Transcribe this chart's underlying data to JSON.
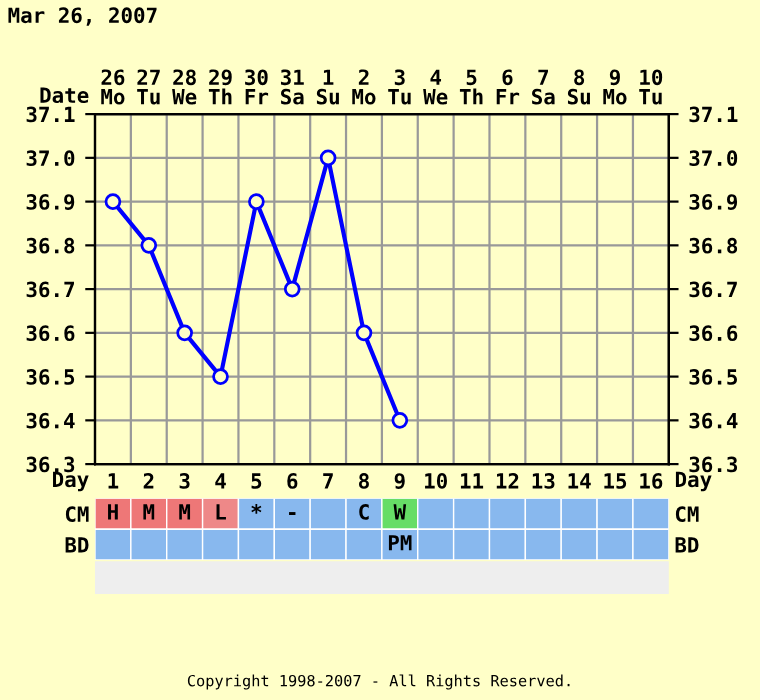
{
  "chart_data": [
    {
      "type": "line",
      "title": "Mar 26, 2007",
      "xlabel": "Date",
      "categories": [
        "26\nMo",
        "27\nTu",
        "28\nWe",
        "29\nTh",
        "30\nFr",
        "31\nSa",
        "1\nSu",
        "2\nMo",
        "3\nTu",
        "4\nWe",
        "5\nTh",
        "6\nFr",
        "7\nSa",
        "8\nSu",
        "9\nMo",
        "10\nTu"
      ],
      "series": [
        {
          "color": "#0000ff",
          "values": [
            36.9,
            36.8,
            36.6,
            36.5,
            36.9,
            36.7,
            37.0,
            36.6,
            36.4,
            null,
            null,
            null,
            null,
            null,
            null,
            null
          ]
        }
      ],
      "ylim": [
        36.3,
        37.1
      ],
      "yticks": [
        36.3,
        36.4,
        36.5,
        36.6,
        36.7,
        36.8,
        36.9,
        {
          "value": 37.0,
          "label": "37.0"
        },
        37.1
      ],
      "y2lim": [
        36.3,
        37.1
      ],
      "y2ticks": [
        36.3,
        36.4,
        36.5,
        36.6,
        36.7,
        36.8,
        36.9,
        {
          "value": 37.0,
          "label": "37.0"
        },
        37.1
      ],
      "marker": "circle",
      "grid": true,
      "legend": false
    },
    {
      "type": "heatmap",
      "xlabel": "Day",
      "categories": [
        "1",
        "2",
        "3",
        "4",
        "5",
        "6",
        "7",
        "8",
        "9",
        "10",
        "11",
        "12",
        "13",
        "14",
        "15",
        "16"
      ],
      "y_categories": [
        "CM",
        "BD"
      ],
      "y2_categories": [
        "CM",
        "BD"
      ],
      "cells": [
        [
          null,
          null,
          null,
          null,
          null,
          null,
          null,
          null,
          null,
          null,
          null,
          null,
          null,
          null,
          null,
          null
        ],
        [
          null,
          null,
          null,
          null,
          null,
          null,
          null,
          null,
          null,
          null,
          null,
          null,
          null,
          null,
          null,
          null
        ]
      ],
      "cell_labels": [
        [
          "H",
          "M",
          "M",
          "L",
          "*",
          "-",
          null,
          "C",
          "W",
          null,
          null,
          null,
          null,
          null,
          null,
          null
        ],
        [
          null,
          null,
          null,
          null,
          null,
          null,
          null,
          null,
          "PM",
          null,
          null,
          null,
          null,
          null,
          null,
          null
        ]
      ],
      "colors": [
        [
          "#ee7777",
          "#ee7777",
          "#ee7777",
          "#ee8888",
          "#88b8ee",
          "#88b8ee",
          "#88b8ee",
          "#88b8ee",
          "#66dd66",
          "#88b8ee",
          "#88b8ee",
          "#88b8ee",
          "#88b8ee",
          "#88b8ee",
          "#88b8ee",
          "#88b8ee"
        ],
        [
          "#88b8ee",
          "#88b8ee",
          "#88b8ee",
          "#88b8ee",
          "#88b8ee",
          "#88b8ee",
          "#88b8ee",
          "#88b8ee",
          "#88b8ee",
          "#88b8ee",
          "#88b8ee",
          "#88b8ee",
          "#88b8ee",
          "#88b8ee",
          "#88b8ee",
          "#88b8ee"
        ]
      ],
      "annotations": [
        "Copyright 1998-2007 - All Rights Reserved."
      ]
    }
  ]
}
